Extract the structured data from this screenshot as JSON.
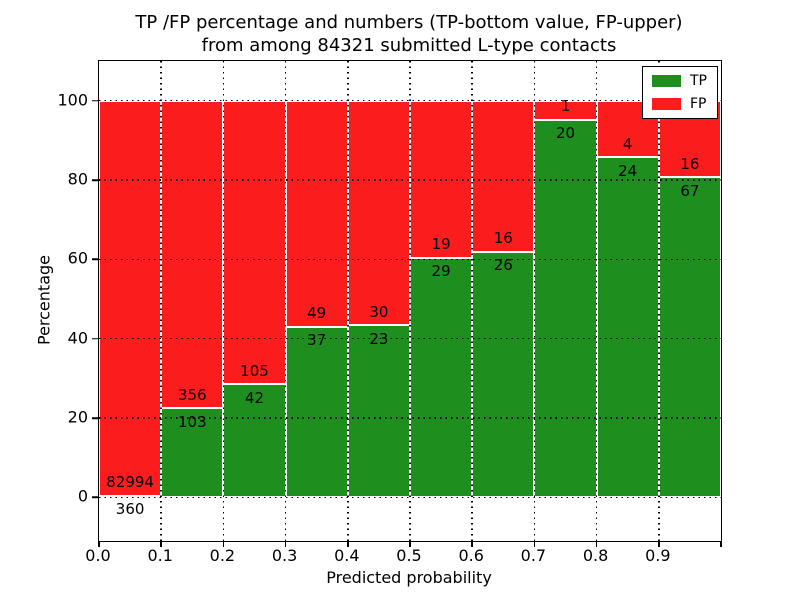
{
  "title": {
    "line1": "TP /FP percentage and numbers (TP-bottom value, FP-upper)",
    "line2": "from among 84321 submitted L-type contacts"
  },
  "axes": {
    "xlabel": "Predicted probability",
    "ylabel": "Percentage",
    "xticklabels": [
      "0.0",
      "0.1",
      "0.2",
      "0.3",
      "0.4",
      "0.5",
      "0.6",
      "0.7",
      "0.8",
      "0.9"
    ],
    "yticks": [
      0,
      20,
      40,
      60,
      80,
      100
    ],
    "xlim": [
      0,
      1.0
    ],
    "ylim": [
      -11,
      110
    ],
    "grid": "dotted"
  },
  "legend": {
    "position": "upper-right",
    "items": [
      {
        "label": "TP",
        "color": "#1e8f1e"
      },
      {
        "label": "FP",
        "color": "#fb1d1d"
      }
    ]
  },
  "colors": {
    "tp": "#1e8f1e",
    "fp": "#fb1d1d",
    "frame": "#000000",
    "background": "#ffffff"
  },
  "chart_data": {
    "type": "bar",
    "stacked": true,
    "normalized_to_percent": true,
    "title": "TP /FP percentage and numbers (TP-bottom value, FP-upper) from among 84321 submitted L-type contacts",
    "xlabel": "Predicted probability",
    "ylabel": "Percentage",
    "total_submitted": 84321,
    "bin_width": 0.1,
    "series_note": "each bin stacks TP% (green, bottom) + FP% (red, top) to 100%; annotations show raw counts (TP bottom value, FP upper)",
    "bins": [
      {
        "x0": 0.0,
        "x1": 0.1,
        "tp": 360,
        "fp": 82994
      },
      {
        "x0": 0.1,
        "x1": 0.2,
        "tp": 103,
        "fp": 356
      },
      {
        "x0": 0.2,
        "x1": 0.3,
        "tp": 42,
        "fp": 105
      },
      {
        "x0": 0.3,
        "x1": 0.4,
        "tp": 37,
        "fp": 49
      },
      {
        "x0": 0.4,
        "x1": 0.5,
        "tp": 23,
        "fp": 30
      },
      {
        "x0": 0.5,
        "x1": 0.6,
        "tp": 29,
        "fp": 19
      },
      {
        "x0": 0.6,
        "x1": 0.7,
        "tp": 26,
        "fp": 16
      },
      {
        "x0": 0.7,
        "x1": 0.8,
        "tp": 20,
        "fp": 1
      },
      {
        "x0": 0.8,
        "x1": 0.9,
        "tp": 24,
        "fp": 4
      },
      {
        "x0": 0.9,
        "x1": 1.0,
        "tp": 67,
        "fp": 16
      }
    ]
  }
}
